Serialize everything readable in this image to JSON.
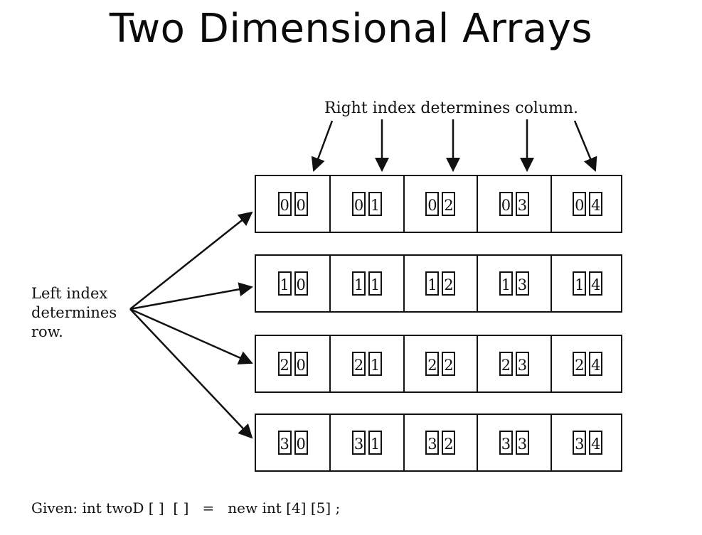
{
  "title": "Two Dimensional Arrays",
  "column_caption": "Right index determines column.",
  "row_caption": [
    "Left index",
    "determines",
    "row."
  ],
  "given_line": "Given: int twoD [ ]  [ ]   =   new int [4] [5] ;",
  "grid": [
    [
      [
        "0",
        "0"
      ],
      [
        "0",
        "1"
      ],
      [
        "0",
        "2"
      ],
      [
        "0",
        "3"
      ],
      [
        "0",
        "4"
      ]
    ],
    [
      [
        "1",
        "0"
      ],
      [
        "1",
        "1"
      ],
      [
        "1",
        "2"
      ],
      [
        "1",
        "3"
      ],
      [
        "1",
        "4"
      ]
    ],
    [
      [
        "2",
        "0"
      ],
      [
        "2",
        "1"
      ],
      [
        "2",
        "2"
      ],
      [
        "2",
        "3"
      ],
      [
        "2",
        "4"
      ]
    ],
    [
      [
        "3",
        "0"
      ],
      [
        "3",
        "1"
      ],
      [
        "3",
        "2"
      ],
      [
        "3",
        "3"
      ],
      [
        "3",
        "4"
      ]
    ]
  ],
  "colors": {
    "ink": "#111111",
    "background": "#ffffff"
  }
}
